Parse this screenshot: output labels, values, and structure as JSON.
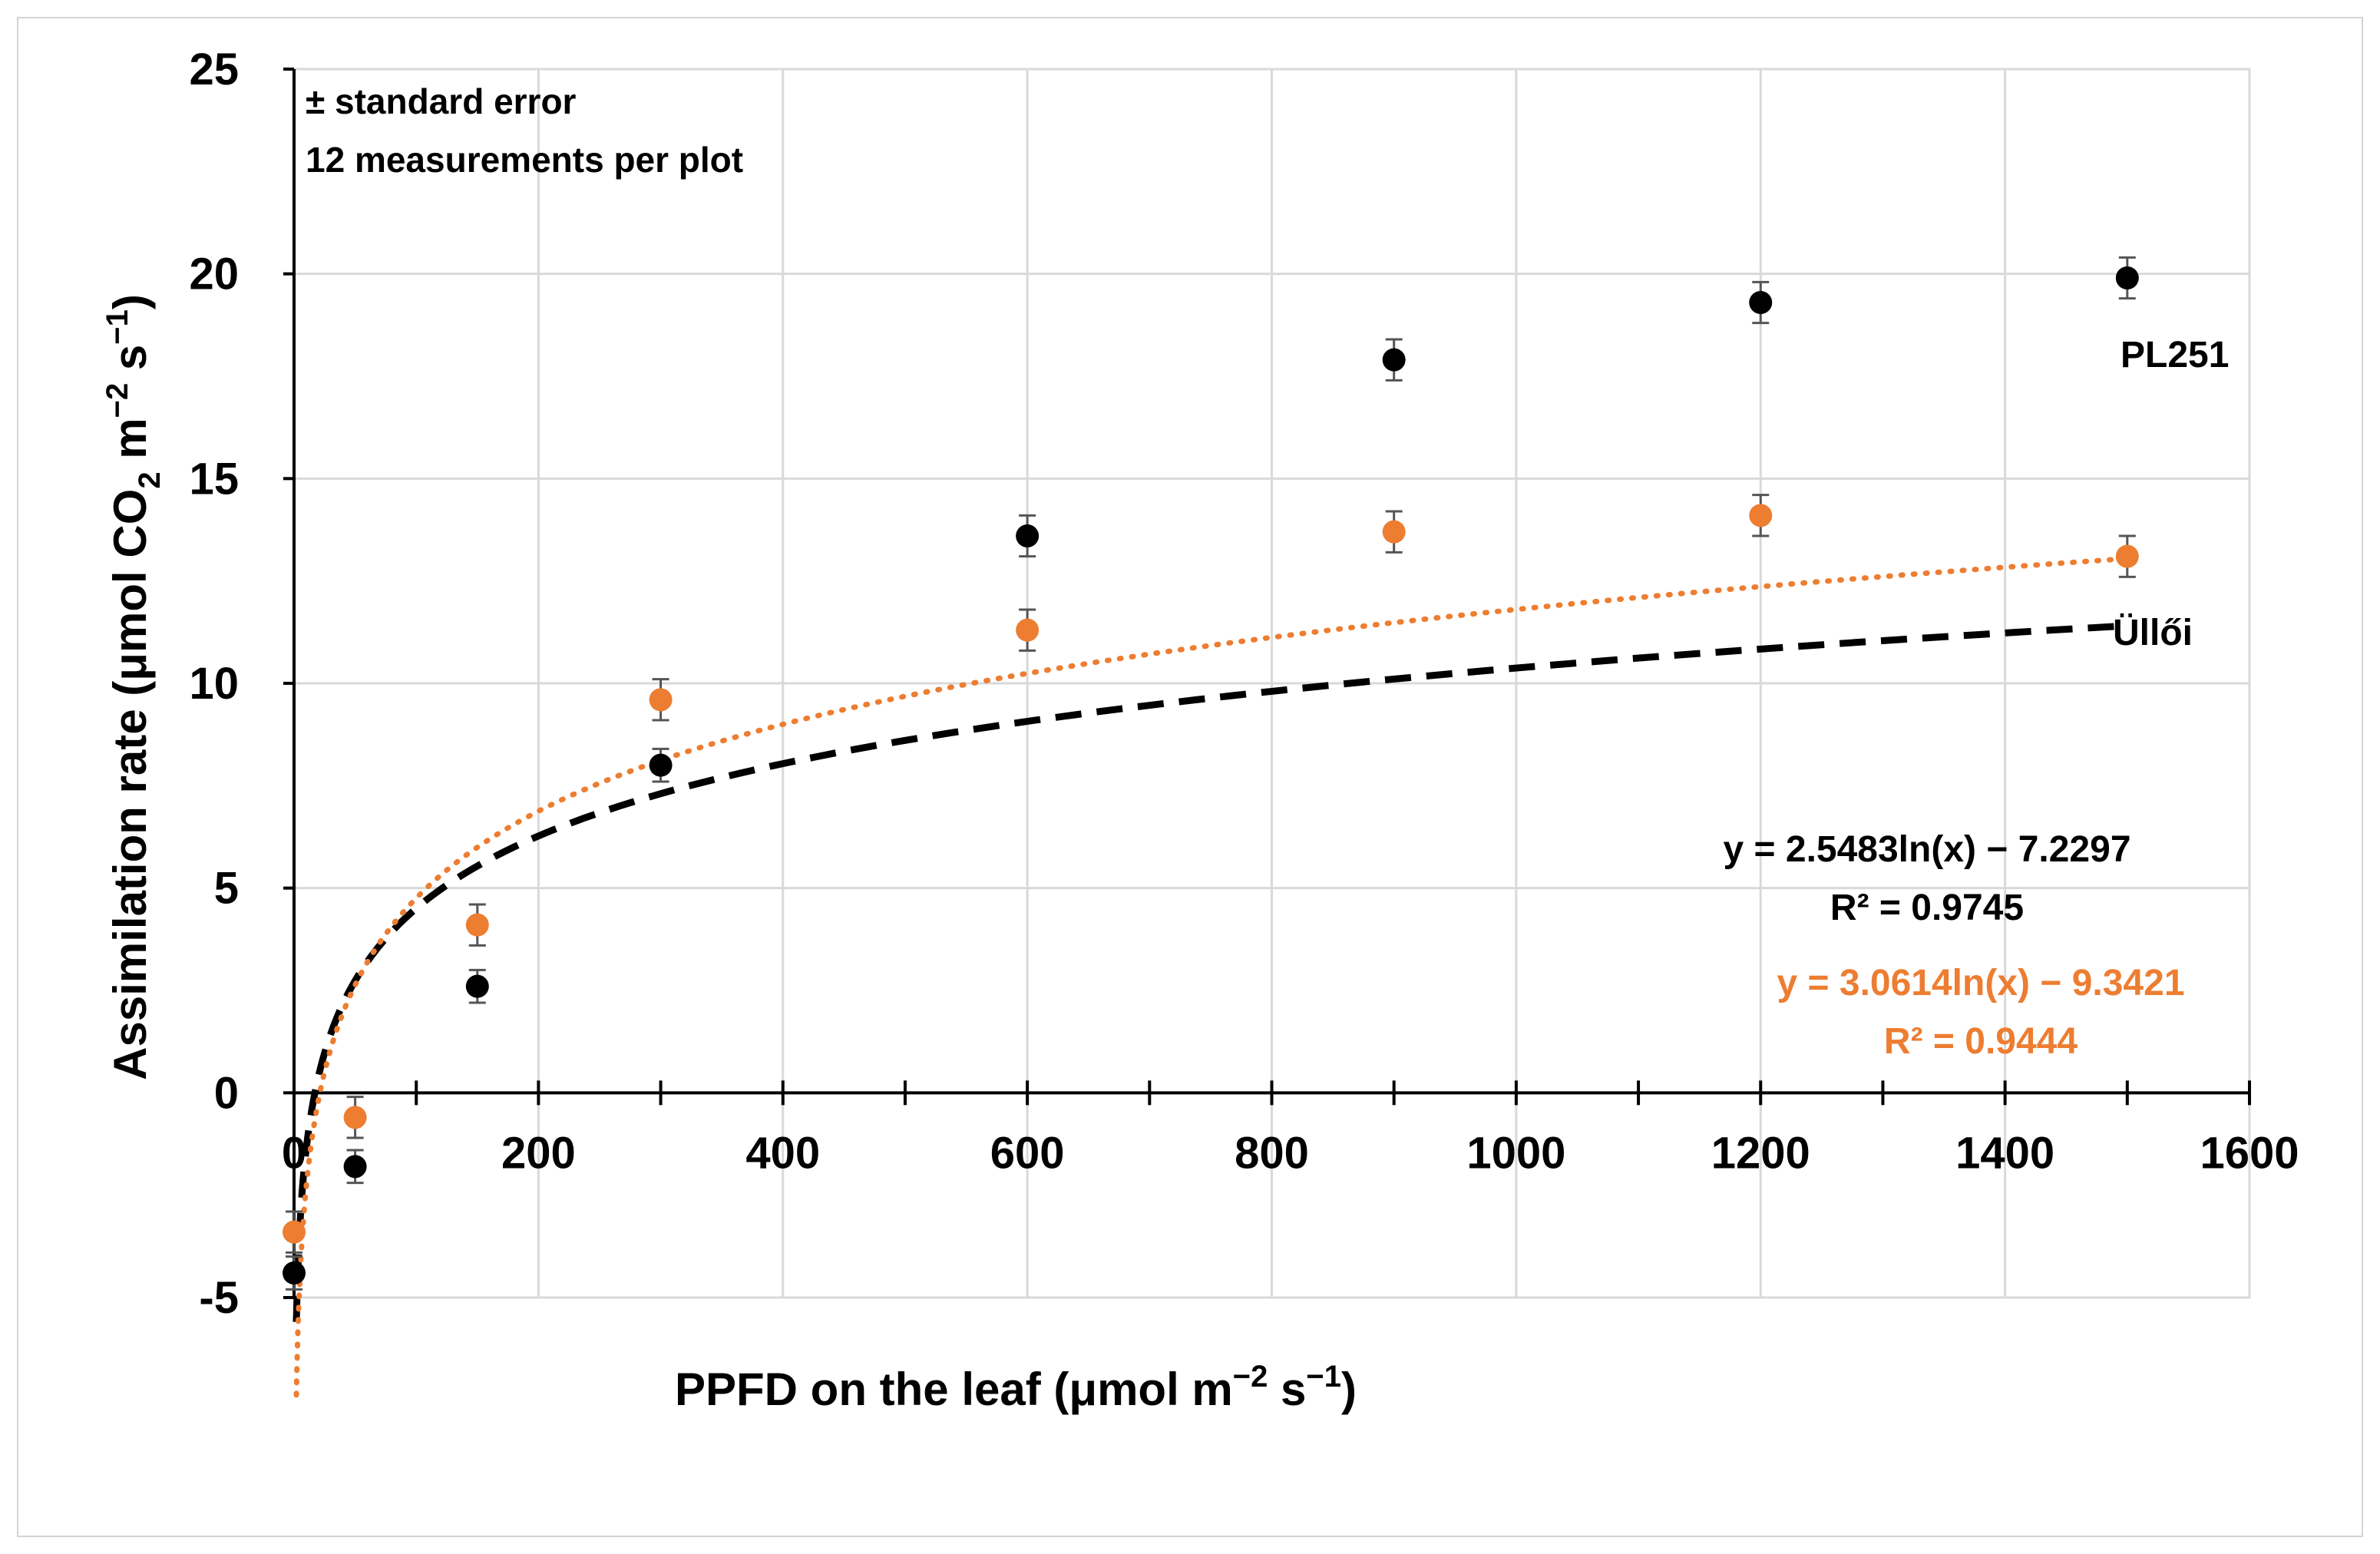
{
  "chart_data": {
    "type": "scatter",
    "xlabel_main": "PPFD on the leaf (μmol m",
    "xlabel_sup1": "−2",
    "xlabel_mid": " s",
    "xlabel_sup2": "−1",
    "xlabel_end": ")",
    "ylabel_main": "Assimilation rate (μmol CO",
    "ylabel_sub": "2",
    "ylabel_mid1": " m",
    "ylabel_sup1": "−2",
    "ylabel_mid2": " s",
    "ylabel_sup2": "−1",
    "ylabel_end": ")",
    "xlim": [
      0,
      1600
    ],
    "ylim": [
      -5,
      25
    ],
    "xticks": [
      0,
      200,
      400,
      600,
      800,
      1000,
      1200,
      1400,
      1600
    ],
    "xtick_labels": [
      "0",
      "200",
      "400",
      "600",
      "800",
      "1000",
      "1200",
      "1400",
      "1600"
    ],
    "yticks": [
      -5,
      0,
      5,
      10,
      15,
      20,
      25
    ],
    "ytick_labels": [
      "-5",
      "0",
      "5",
      "10",
      "15",
      "20",
      "25"
    ],
    "grid": true,
    "annotation_line1": "± standard error",
    "annotation_line2": "12 measurements per plot",
    "series": [
      {
        "name": "PL251",
        "color": "#000000",
        "x": [
          0,
          50,
          150,
          300,
          600,
          900,
          1200,
          1500
        ],
        "y": [
          -4.4,
          -1.8,
          2.6,
          8.0,
          13.6,
          17.9,
          19.3,
          19.9
        ],
        "err": [
          0.4,
          0.4,
          0.4,
          0.4,
          0.5,
          0.5,
          0.5,
          0.5
        ],
        "fit": {
          "a": 2.5483,
          "b": -7.2297,
          "style": "dashed"
        },
        "equation": "y = 2.5483ln(x) − 7.2297",
        "r2": "R² = 0.9745"
      },
      {
        "name": "Üllői",
        "color": "#ED7D31",
        "x": [
          0,
          50,
          150,
          300,
          600,
          900,
          1200,
          1500
        ],
        "y": [
          -3.4,
          -0.6,
          4.1,
          9.6,
          11.3,
          13.7,
          14.1,
          13.1
        ],
        "err": [
          0.5,
          0.5,
          0.5,
          0.5,
          0.5,
          0.5,
          0.5,
          0.5
        ],
        "fit": {
          "a": 3.0614,
          "b": -9.3421,
          "style": "dotted"
        },
        "equation": "y = 3.0614ln(x) − 9.3421",
        "r2": "R² = 0.9444"
      }
    ]
  }
}
